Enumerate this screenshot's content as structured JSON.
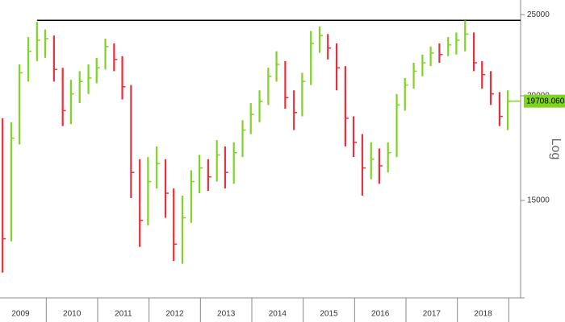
{
  "chart_data": {
    "type": "hlc",
    "x": [
      2009.15,
      2009.32,
      2009.48,
      2009.65,
      2009.82,
      2009.98,
      2010.15,
      2010.32,
      2010.48,
      2010.65,
      2010.82,
      2010.98,
      2011.15,
      2011.32,
      2011.48,
      2011.65,
      2011.82,
      2011.98,
      2012.15,
      2012.32,
      2012.48,
      2012.65,
      2012.82,
      2012.98,
      2013.15,
      2013.32,
      2013.48,
      2013.65,
      2013.82,
      2013.98,
      2014.15,
      2014.32,
      2014.48,
      2014.65,
      2014.82,
      2014.98,
      2015.15,
      2015.32,
      2015.48,
      2015.65,
      2015.82,
      2015.98,
      2016.15,
      2016.32,
      2016.48,
      2016.65,
      2016.82,
      2016.98,
      2017.15,
      2017.32,
      2017.48,
      2017.65,
      2017.82,
      2017.98,
      2018.15,
      2018.32,
      2018.48,
      2018.65,
      2018.82,
      2018.98
    ],
    "close": [
      13500,
      17800,
      21300,
      22600,
      23300,
      23400,
      21500,
      19200,
      20100,
      20800,
      21000,
      21600,
      22900,
      22100,
      20500,
      16200,
      14200,
      15800,
      16600,
      15300,
      13300,
      14300,
      15800,
      16400,
      16000,
      17000,
      16200,
      17100,
      18200,
      19000,
      19700,
      21100,
      21800,
      19900,
      19100,
      20800,
      23100,
      23600,
      22800,
      21600,
      18800,
      17600,
      16400,
      16800,
      16500,
      17100,
      19500,
      20600,
      21400,
      21900,
      22500,
      22400,
      23000,
      23300,
      23700,
      21900,
      21200,
      20100,
      18900,
      19700
    ],
    "high": [
      18800,
      18600,
      21800,
      23500,
      24500,
      24000,
      23600,
      21600,
      20900,
      21400,
      21800,
      22200,
      23400,
      23100,
      22300,
      20600,
      16800,
      16900,
      17400,
      16800,
      15500,
      15200,
      16300,
      17000,
      16800,
      17700,
      17400,
      17600,
      18700,
      19600,
      20300,
      21600,
      22600,
      22000,
      20300,
      21300,
      23900,
      24200,
      23700,
      23100,
      21700,
      18900,
      18000,
      17600,
      17300,
      17600,
      20100,
      21000,
      21900,
      22400,
      22900,
      23100,
      23500,
      23800,
      24600,
      23800,
      22000,
      21400,
      20200,
      20300
    ],
    "low": [
      12300,
      13400,
      17500,
      20800,
      22000,
      22200,
      20800,
      18400,
      18500,
      19600,
      20100,
      20700,
      21500,
      21400,
      19800,
      15100,
      13200,
      14000,
      15500,
      14300,
      12700,
      12600,
      14100,
      15300,
      15400,
      15800,
      15500,
      15700,
      16900,
      18000,
      18600,
      19500,
      20800,
      19300,
      18200,
      18900,
      20600,
      22500,
      22100,
      20300,
      17400,
      16900,
      15200,
      15900,
      15700,
      16200,
      16900,
      19200,
      20400,
      21100,
      21700,
      21900,
      22300,
      22400,
      22600,
      21400,
      20400,
      19500,
      18400,
      18200
    ],
    "up_color": "#7fd321",
    "down_color": "#e8303c",
    "last_value": 19708.0605,
    "reference_line": 24613,
    "y_label": "Log",
    "log_scale": true,
    "xlim": [
      2009.1,
      2019.23
    ],
    "xticks": [
      {
        "value": 2009.5,
        "label": "2009"
      },
      {
        "value": 2010.5,
        "label": "2010"
      },
      {
        "value": 2011.5,
        "label": "2011"
      },
      {
        "value": 2012.5,
        "label": "2012"
      },
      {
        "value": 2013.5,
        "label": "2013"
      },
      {
        "value": 2014.5,
        "label": "2014"
      },
      {
        "value": 2015.5,
        "label": "2015"
      },
      {
        "value": 2016.5,
        "label": "2016"
      },
      {
        "value": 2017.5,
        "label": "2017"
      },
      {
        "value": 2018.5,
        "label": "2018"
      }
    ],
    "ylim": [
      11475,
      26025
    ],
    "yticks": [
      15000,
      20000,
      25000
    ]
  }
}
